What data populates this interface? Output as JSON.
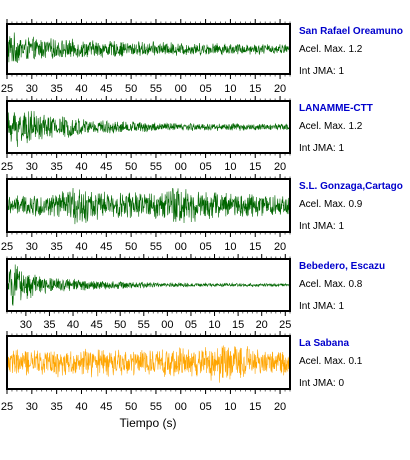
{
  "chart_data": {
    "type": "line",
    "xlabel": "Tiempo (s)",
    "grid": false,
    "legend": "right",
    "colors": {
      "default": "#006600",
      "highlight": "#ffa500",
      "label": "#0000cc"
    },
    "panels": [
      {
        "name": "San Rafael Oreamuno",
        "acel": "Acel. Max. 1.2",
        "jma": "Int JMA: 1",
        "color": "#006600",
        "ticks": [
          "25",
          "30",
          "35",
          "40",
          "45",
          "50",
          "55",
          "00",
          "05",
          "10",
          "15",
          "20"
        ],
        "tick_offsets": [
          0,
          5,
          10,
          15,
          20,
          25,
          30,
          35,
          40,
          45,
          50,
          55
        ],
        "x_range": [
          0,
          57
        ],
        "envelope": [
          [
            0,
            0.9
          ],
          [
            1,
            0.75
          ],
          [
            4,
            0.55
          ],
          [
            10,
            0.45
          ],
          [
            25,
            0.35
          ],
          [
            40,
            0.28
          ],
          [
            57,
            0.22
          ]
        ]
      },
      {
        "name": "LANAMME-CTT",
        "acel": "Acel. Max. 1.2",
        "jma": "Int JMA: 1",
        "color": "#006600",
        "ticks": [
          "25",
          "30",
          "35",
          "40",
          "45",
          "50",
          "55",
          "00",
          "05",
          "10",
          "15",
          "20"
        ],
        "tick_offsets": [
          0,
          5,
          10,
          15,
          20,
          25,
          30,
          35,
          40,
          45,
          50,
          55
        ],
        "x_range": [
          0,
          57
        ],
        "envelope": [
          [
            0,
            0.5
          ],
          [
            1,
            0.95
          ],
          [
            5,
            0.7
          ],
          [
            10,
            0.5
          ],
          [
            20,
            0.28
          ],
          [
            35,
            0.18
          ],
          [
            57,
            0.14
          ]
        ]
      },
      {
        "name": "S.L. Gonzaga,Cartago",
        "acel": "Acel. Max. 0.9",
        "jma": "Int JMA: 1",
        "color": "#006600",
        "ticks": [
          "25",
          "30",
          "35",
          "40",
          "45",
          "50",
          "55",
          "00",
          "05",
          "10",
          "15",
          "20"
        ],
        "tick_offsets": [
          0,
          5,
          10,
          15,
          20,
          25,
          30,
          35,
          40,
          45,
          50,
          55
        ],
        "x_range": [
          0,
          57
        ],
        "envelope": [
          [
            0,
            0.4
          ],
          [
            10,
            0.5
          ],
          [
            14,
            0.85
          ],
          [
            20,
            0.55
          ],
          [
            30,
            0.6
          ],
          [
            35,
            0.95
          ],
          [
            40,
            0.6
          ],
          [
            50,
            0.55
          ],
          [
            57,
            0.45
          ]
        ]
      },
      {
        "name": "Bebedero, Escazu",
        "acel": "Acel. Max. 0.8",
        "jma": "Int JMA: 1",
        "color": "#006600",
        "ticks": [
          "30",
          "35",
          "40",
          "45",
          "50",
          "55",
          "00",
          "05",
          "10",
          "15",
          "20",
          "25"
        ],
        "tick_offsets": [
          0,
          5,
          10,
          15,
          20,
          25,
          30,
          35,
          40,
          45,
          50,
          55
        ],
        "x_range": [
          -4,
          56
        ],
        "envelope": [
          [
            -4,
            0.3
          ],
          [
            -3,
            0.95
          ],
          [
            0,
            0.6
          ],
          [
            5,
            0.35
          ],
          [
            15,
            0.2
          ],
          [
            30,
            0.1
          ],
          [
            56,
            0.06
          ]
        ]
      },
      {
        "name": "La Sabana",
        "acel": "Acel. Max. 0.1",
        "jma": "Int JMA: 0",
        "color": "#ffa500",
        "ticks": [
          "25",
          "30",
          "35",
          "40",
          "45",
          "50",
          "55",
          "00",
          "05",
          "10",
          "15",
          "20"
        ],
        "tick_offsets": [
          0,
          5,
          10,
          15,
          20,
          25,
          30,
          35,
          40,
          45,
          50,
          55
        ],
        "x_range": [
          0,
          57
        ],
        "envelope": [
          [
            0,
            0.55
          ],
          [
            10,
            0.6
          ],
          [
            20,
            0.6
          ],
          [
            30,
            0.55
          ],
          [
            40,
            0.75
          ],
          [
            45,
            0.9
          ],
          [
            50,
            0.6
          ],
          [
            57,
            0.55
          ]
        ]
      }
    ]
  }
}
